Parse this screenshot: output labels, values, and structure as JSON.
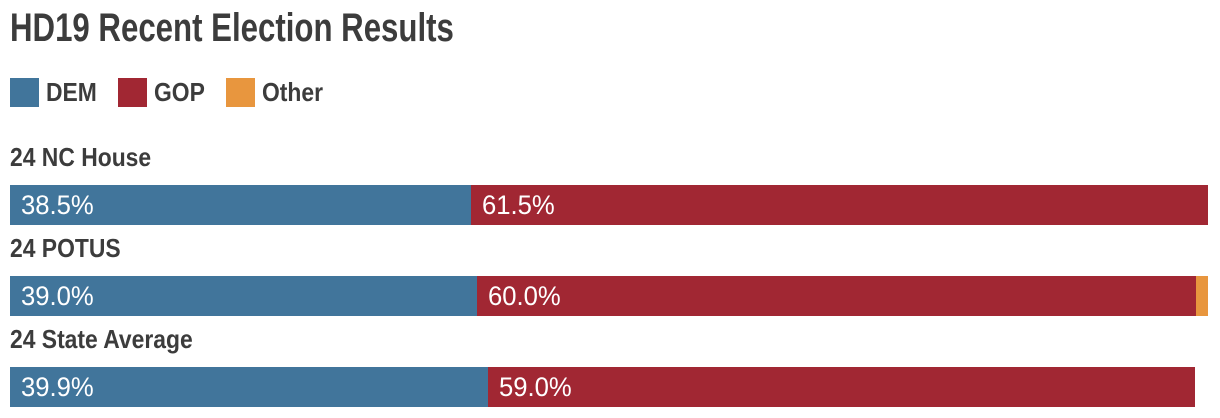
{
  "title": "HD19 Recent Election Results",
  "colors": {
    "dem": "#41759B",
    "gop": "#A12733",
    "other": "#E8963E",
    "heading_text": "#3C3C3C",
    "bar_value_text": "#FFFFFF",
    "background": "#FFFFFF"
  },
  "legend": [
    {
      "label": "DEM",
      "color": "#41759B"
    },
    {
      "label": "GOP",
      "color": "#A12733"
    },
    {
      "label": "Other",
      "color": "#E8963E"
    }
  ],
  "chart_data": {
    "type": "bar",
    "orientation": "horizontal-stacked",
    "title": "HD19 Recent Election Results",
    "unit": "%",
    "xlim": [
      0,
      100
    ],
    "grid": false,
    "legend_position": "top-left",
    "legend_entries": [
      "DEM",
      "GOP",
      "Other"
    ],
    "categories": [
      "24 NC House",
      "24 POTUS",
      "24 State Average"
    ],
    "series": [
      {
        "name": "DEM",
        "values": [
          38.5,
          39.0,
          39.9
        ]
      },
      {
        "name": "GOP",
        "values": [
          61.5,
          60.0,
          59.0
        ]
      },
      {
        "name": "Other",
        "values": [
          0,
          1.0,
          0
        ]
      }
    ],
    "rows": [
      {
        "label": "24 NC House",
        "dem": 38.5,
        "gop": 61.5,
        "other": 0,
        "dem_text": "38.5%",
        "gop_text": "61.5%"
      },
      {
        "label": "24 POTUS",
        "dem": 39.0,
        "gop": 60.0,
        "other": 1.0,
        "dem_text": "39.0%",
        "gop_text": "60.0%"
      },
      {
        "label": "24 State Average",
        "dem": 39.9,
        "gop": 59.0,
        "other": 0,
        "dem_text": "39.9%",
        "gop_text": "59.0%"
      }
    ]
  }
}
